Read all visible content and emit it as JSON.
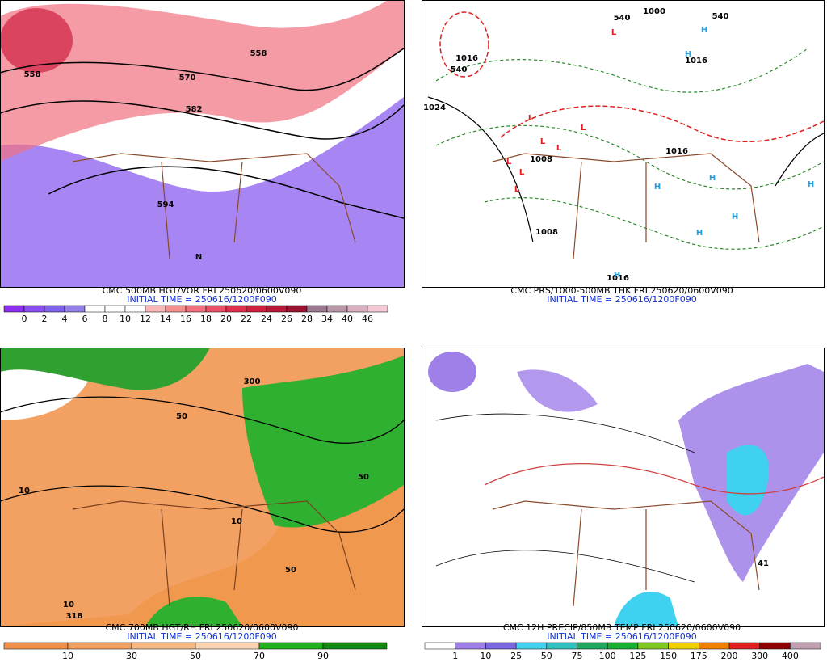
{
  "panels": [
    {
      "caption": "CMC 500MB HGT/VOR FRI 250620/0600V090",
      "initial_time": "INITIAL TIME = 250616/1200F090",
      "map_labels": [
        "558",
        "558",
        "570",
        "582",
        "594",
        "N"
      ],
      "colorbar": {
        "labels": [
          0,
          2,
          4,
          6,
          8,
          10,
          12,
          14,
          16,
          18,
          20,
          22,
          24,
          26,
          28,
          34,
          40,
          46
        ],
        "colors": [
          "#8e2ff0",
          "#8a4ff0",
          "#7f63e8",
          "#9480e8",
          "#ffffff",
          "#ffffff",
          "#ffffff",
          "#f8b8b8",
          "#f49090",
          "#f07080",
          "#e85068",
          "#e03050",
          "#d02040",
          "#b81838",
          "#981430",
          "#9a7890",
          "#b898a8",
          "#d8b0c0",
          "#f4c8d4"
        ]
      }
    },
    {
      "caption": "CMC PRS/1000-500MB THK FRI 250620/0600V090",
      "initial_time": "INITIAL TIME = 250616/1200F090",
      "map_labels": [
        "1000",
        "540",
        "540",
        "540",
        "1016",
        "1016",
        "1024",
        "1008",
        "1008",
        "1016",
        "1016",
        "H",
        "H",
        "H",
        "H",
        "H",
        "H",
        "H",
        "H",
        "L",
        "L",
        "L",
        "L",
        "L",
        "L",
        "L",
        "L"
      ]
    },
    {
      "caption": "CMC 700MB HGT/RH FRI 250620/0600V090",
      "initial_time": "INITIAL TIME = 250616/1200F090",
      "map_labels": [
        "300",
        "50",
        "50",
        "10",
        "10",
        "50",
        "10",
        "318"
      ],
      "colorbar": {
        "labels": [
          10,
          30,
          50,
          70,
          90
        ],
        "colors": [
          "#f0904a",
          "#f2a060",
          "#f6b880",
          "#fad4b0",
          "#20b020",
          "#108a10"
        ]
      }
    },
    {
      "caption": "CMC 12H PRECIP/850MB TEMP FRI 250620/0600V090",
      "initial_time": "INITIAL TIME = 250616/1200F090",
      "map_labels": [
        "41"
      ],
      "colorbar": {
        "labels": [
          1,
          10,
          25,
          50,
          75,
          100,
          125,
          150,
          175,
          200,
          300,
          400
        ],
        "colors": [
          "#ffffff",
          "#9f7fe8",
          "#7a68e0",
          "#40d0f0",
          "#30c0c0",
          "#20a860",
          "#18b030",
          "#80c820",
          "#f0d000",
          "#f08000",
          "#e02020",
          "#900000",
          "#c0a0b0"
        ]
      }
    }
  ]
}
